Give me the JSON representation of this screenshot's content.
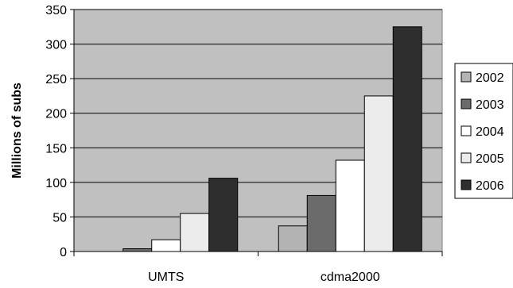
{
  "chart_data": {
    "type": "bar",
    "title": "",
    "xlabel": "",
    "ylabel": "Millions of subs",
    "categories": [
      "UMTS",
      "cdma2000"
    ],
    "series": [
      {
        "name": "2002",
        "values": [
          0,
          37
        ],
        "color": "#b3b3b3"
      },
      {
        "name": "2003",
        "values": [
          4,
          81
        ],
        "color": "#6b6b6b"
      },
      {
        "name": "2004",
        "values": [
          17,
          132
        ],
        "color": "#ffffff"
      },
      {
        "name": "2005",
        "values": [
          55,
          225
        ],
        "color": "#ececec"
      },
      {
        "name": "2006",
        "values": [
          106,
          325
        ],
        "color": "#2e2e2e"
      }
    ],
    "ylim": [
      0,
      350
    ],
    "yticks": [
      0,
      50,
      100,
      150,
      200,
      250,
      300,
      350
    ],
    "ytick_labels": [
      "0",
      "50",
      "100",
      "150",
      "200",
      "250",
      "300",
      "350"
    ],
    "grid": true,
    "plot_background": "#c0c0c0",
    "legend_position": "right"
  }
}
